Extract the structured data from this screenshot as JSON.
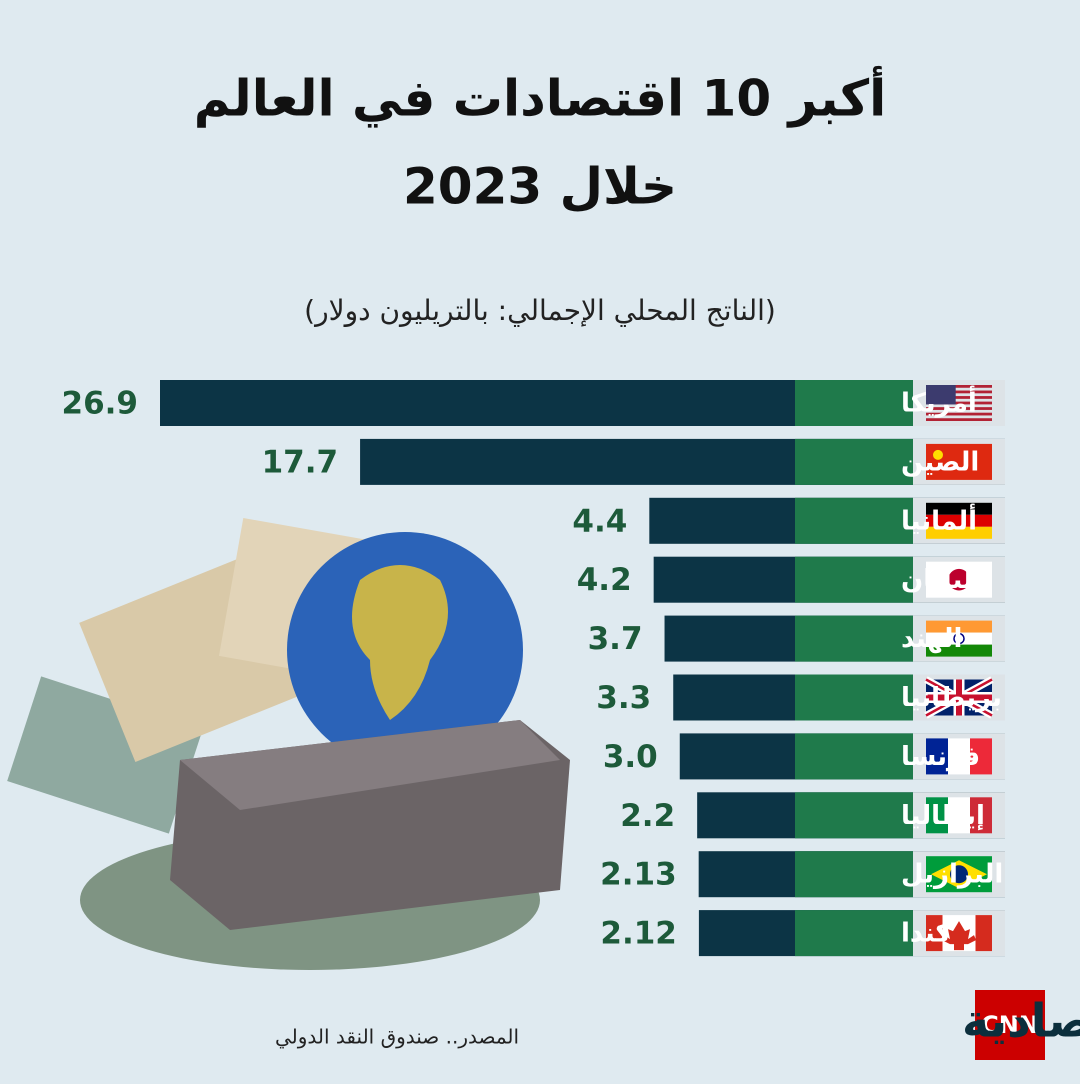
{
  "chart_data": {
    "type": "bar",
    "orientation": "horizontal",
    "title": [
      "أكبر 10 اقتصادات في العالم",
      "خلال 2023"
    ],
    "subtitle": "(الناتج المحلي الإجمالي: بالتريليون دولار)",
    "categories": [
      "أمريكا",
      "الصين",
      "ألمانيا",
      "اليابان",
      "الهند",
      "بريطانيا",
      "فرنسا",
      "إيطاليا",
      "البرازيل",
      "كندا"
    ],
    "values": [
      26.9,
      17.7,
      4.4,
      4.2,
      3.7,
      3.3,
      3.0,
      2.2,
      2.13,
      2.12
    ],
    "value_labels": [
      "26.9",
      "17.7",
      "4.4",
      "4.2",
      "3.7",
      "3.3",
      "3.0",
      "2.2",
      "2.13",
      "2.12"
    ],
    "color": "#0c3445",
    "label_color": "#1f7a4b",
    "source": "المصدر.. صندوق النقد الدولي"
  },
  "logo": {
    "brand": "CNN",
    "name": "الاقتصادية"
  }
}
